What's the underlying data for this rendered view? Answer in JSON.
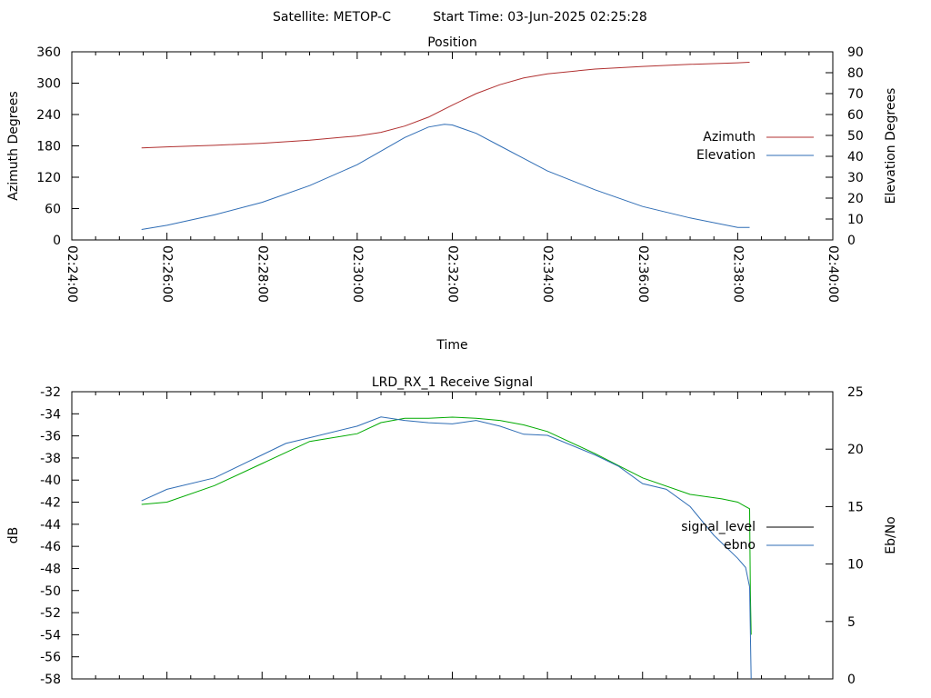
{
  "header": {
    "satellite_label": "Satellite: METOP-C",
    "start_time_label": "Start Time: 03-Jun-2025 02:25:28"
  },
  "chart_data": [
    {
      "type": "line",
      "title": "Position",
      "xlabel": "Time",
      "ylabel": "Azimuth Degrees",
      "y2label": "Elevation Degrees",
      "xlim": [
        "02:24:00",
        "02:40:00"
      ],
      "ylim": [
        0,
        360
      ],
      "y2lim": [
        0,
        90
      ],
      "x_tick_labels": [
        "02:24:00",
        "02:26:00",
        "02:28:00",
        "02:30:00",
        "02:32:00",
        "02:34:00",
        "02:36:00",
        "02:38:00",
        "02:40:00"
      ],
      "y_tick_labels": [
        "0",
        "60",
        "120",
        "180",
        "240",
        "300",
        "360"
      ],
      "y2_tick_labels": [
        "0",
        "10",
        "20",
        "30",
        "40",
        "50",
        "60",
        "70",
        "80",
        "90"
      ],
      "legend_position": "right",
      "grid": false,
      "series": [
        {
          "name": "Azimuth",
          "axis": "y",
          "color": "#b03030",
          "x": [
            "02:25:28",
            "02:26:00",
            "02:27:00",
            "02:28:00",
            "02:29:00",
            "02:30:00",
            "02:30:30",
            "02:31:00",
            "02:31:30",
            "02:32:00",
            "02:32:30",
            "02:33:00",
            "02:33:30",
            "02:34:00",
            "02:35:00",
            "02:36:00",
            "02:37:00",
            "02:38:00",
            "02:38:15"
          ],
          "values": [
            176,
            178,
            181,
            185,
            191,
            199,
            206,
            218,
            235,
            258,
            280,
            297,
            310,
            318,
            327,
            332,
            336,
            339,
            340
          ]
        },
        {
          "name": "Elevation",
          "axis": "y2",
          "color": "#2f6db5",
          "x": [
            "02:25:28",
            "02:26:00",
            "02:27:00",
            "02:28:00",
            "02:29:00",
            "02:30:00",
            "02:30:30",
            "02:31:00",
            "02:31:30",
            "02:31:50",
            "02:32:00",
            "02:32:30",
            "02:33:00",
            "02:33:30",
            "02:34:00",
            "02:35:00",
            "02:36:00",
            "02:37:00",
            "02:38:00",
            "02:38:15"
          ],
          "values": [
            5,
            7,
            12,
            18,
            26,
            36,
            42.5,
            49,
            54,
            55.3,
            55,
            51,
            45,
            39,
            33,
            24,
            16,
            10.5,
            6,
            6
          ]
        }
      ]
    },
    {
      "type": "line",
      "title": "LRD_RX_1 Receive Signal",
      "ylabel": "dB",
      "y2label": "Eb/No",
      "xlim": [
        "02:24:00",
        "02:40:00"
      ],
      "ylim": [
        -58,
        -32
      ],
      "y2lim": [
        0,
        25
      ],
      "y_tick_labels": [
        "-58",
        "-56",
        "-54",
        "-52",
        "-50",
        "-48",
        "-46",
        "-44",
        "-42",
        "-40",
        "-38",
        "-36",
        "-34",
        "-32"
      ],
      "y2_tick_labels": [
        "0",
        "5",
        "10",
        "15",
        "20",
        "25"
      ],
      "legend_position": "right",
      "grid": false,
      "series": [
        {
          "name": "signal_level",
          "axis": "y",
          "color": "#00aa00",
          "x": [
            "02:25:28",
            "02:26:00",
            "02:27:00",
            "02:28:00",
            "02:29:00",
            "02:30:00",
            "02:30:30",
            "02:31:00",
            "02:31:30",
            "02:32:00",
            "02:32:30",
            "02:33:00",
            "02:33:30",
            "02:34:00",
            "02:35:00",
            "02:36:00",
            "02:37:00",
            "02:37:40",
            "02:38:00",
            "02:38:10",
            "02:38:15",
            "02:38:16",
            "02:38:17"
          ],
          "values": [
            -42.2,
            -42,
            -40.5,
            -38.5,
            -36.5,
            -35.8,
            -34.8,
            -34.4,
            -34.4,
            -34.3,
            -34.4,
            -34.6,
            -35,
            -35.6,
            -37.6,
            -39.8,
            -41.3,
            -41.7,
            -42,
            -42.4,
            -42.6,
            -50,
            -54
          ]
        },
        {
          "name": "ebno",
          "axis": "y2",
          "color": "#2f6db5",
          "x": [
            "02:25:28",
            "02:26:00",
            "02:27:00",
            "02:28:00",
            "02:28:30",
            "02:29:00",
            "02:30:00",
            "02:30:30",
            "02:31:00",
            "02:31:30",
            "02:32:00",
            "02:32:30",
            "02:33:00",
            "02:33:30",
            "02:34:00",
            "02:35:00",
            "02:35:30",
            "02:36:00",
            "02:36:30",
            "02:37:00",
            "02:37:30",
            "02:38:00",
            "02:38:10",
            "02:38:15",
            "02:38:17"
          ],
          "values": [
            15.5,
            16.5,
            17.5,
            19.5,
            20.5,
            21,
            22,
            22.8,
            22.5,
            22.3,
            22.2,
            22.5,
            22,
            21.3,
            21.2,
            19.5,
            18.5,
            17,
            16.5,
            15,
            12.5,
            10.5,
            9.7,
            8,
            0
          ]
        }
      ]
    }
  ]
}
